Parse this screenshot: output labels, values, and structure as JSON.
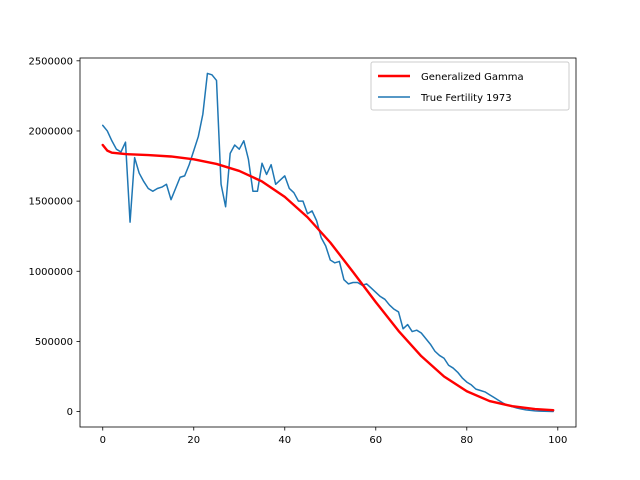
{
  "chart_data": {
    "type": "line",
    "title": "",
    "xlabel": "",
    "ylabel": "",
    "xlim": [
      -5,
      104
    ],
    "ylim": [
      -110000,
      2520000
    ],
    "x_ticks": [
      0,
      20,
      40,
      60,
      80,
      100
    ],
    "x_tick_labels": [
      "0",
      "20",
      "40",
      "60",
      "80",
      "100"
    ],
    "y_ticks": [
      0,
      500000,
      1000000,
      1500000,
      2000000,
      2500000
    ],
    "y_tick_labels": [
      "0",
      "500000",
      "1000000",
      "1500000",
      "2000000",
      "2500000"
    ],
    "grid": false,
    "legend_position": "top-right",
    "series": [
      {
        "name": "Generalized Gamma",
        "color": "#ff0000",
        "x": [
          0,
          1,
          2,
          5,
          10,
          15,
          20,
          25,
          30,
          35,
          40,
          45,
          50,
          55,
          60,
          65,
          70,
          75,
          80,
          85,
          90,
          95,
          99
        ],
        "y": [
          1900000,
          1860000,
          1845000,
          1835000,
          1828000,
          1818000,
          1798000,
          1765000,
          1715000,
          1640000,
          1530000,
          1385000,
          1205000,
          995000,
          780000,
          575000,
          395000,
          250000,
          145000,
          75000,
          38000,
          18000,
          10000
        ]
      },
      {
        "name": "True Fertility 1973",
        "color": "#1f77b4",
        "x": [
          0,
          1,
          2,
          3,
          4,
          5,
          6,
          7,
          8,
          9,
          10,
          11,
          12,
          13,
          14,
          15,
          16,
          17,
          18,
          19,
          20,
          21,
          22,
          23,
          24,
          25,
          26,
          27,
          28,
          29,
          30,
          31,
          32,
          33,
          34,
          35,
          36,
          37,
          38,
          39,
          40,
          41,
          42,
          43,
          44,
          45,
          46,
          47,
          48,
          49,
          50,
          51,
          52,
          53,
          54,
          55,
          56,
          57,
          58,
          59,
          60,
          61,
          62,
          63,
          64,
          65,
          66,
          67,
          68,
          69,
          70,
          71,
          72,
          73,
          74,
          75,
          76,
          77,
          78,
          79,
          80,
          81,
          82,
          83,
          84,
          85,
          86,
          87,
          88,
          89,
          90,
          91,
          92,
          93,
          94,
          95,
          96,
          97,
          98,
          99
        ],
        "y": [
          2040000,
          2000000,
          1930000,
          1870000,
          1850000,
          1920000,
          1350000,
          1810000,
          1700000,
          1640000,
          1590000,
          1570000,
          1590000,
          1600000,
          1620000,
          1510000,
          1590000,
          1670000,
          1680000,
          1760000,
          1860000,
          1960000,
          2120000,
          2410000,
          2400000,
          2360000,
          1620000,
          1460000,
          1840000,
          1900000,
          1870000,
          1930000,
          1800000,
          1570000,
          1570000,
          1770000,
          1690000,
          1760000,
          1620000,
          1650000,
          1680000,
          1590000,
          1560000,
          1500000,
          1500000,
          1410000,
          1430000,
          1360000,
          1240000,
          1180000,
          1080000,
          1060000,
          1070000,
          940000,
          910000,
          920000,
          920000,
          900000,
          910000,
          880000,
          850000,
          820000,
          800000,
          760000,
          730000,
          710000,
          590000,
          620000,
          570000,
          580000,
          560000,
          520000,
          480000,
          430000,
          400000,
          380000,
          330000,
          310000,
          280000,
          240000,
          210000,
          190000,
          160000,
          150000,
          140000,
          120000,
          100000,
          80000,
          60000,
          45000,
          35000,
          25000,
          18000,
          12000,
          8000,
          5000,
          3000,
          2000,
          1000,
          500
        ]
      }
    ]
  }
}
